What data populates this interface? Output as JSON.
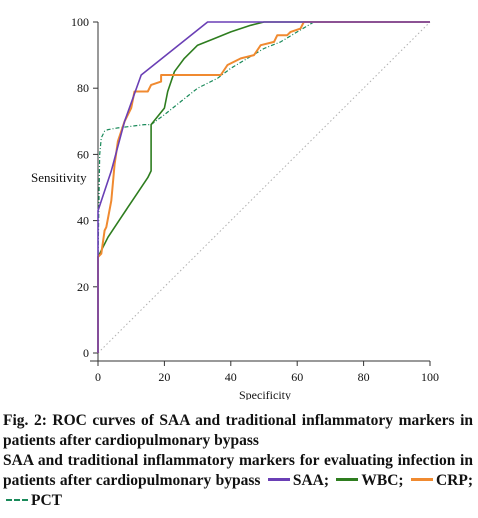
{
  "chart_data": {
    "type": "line",
    "xlabel": "Specificity",
    "ylabel": "Sensitivity",
    "xlim": [
      0,
      100
    ],
    "ylim": [
      0,
      100
    ],
    "xticks": [
      0,
      20,
      40,
      60,
      80,
      100
    ],
    "yticks": [
      0,
      20,
      40,
      60,
      80,
      100
    ],
    "grid": false,
    "reference_line": {
      "x": [
        0,
        100
      ],
      "y": [
        0,
        100
      ],
      "color": "#b0b0b0",
      "style": "dotted"
    },
    "series": [
      {
        "name": "SAA",
        "color": "#6a3fb5",
        "style": "solid",
        "x": [
          0,
          0,
          4,
          8,
          13,
          18,
          23,
          28,
          33,
          40,
          50,
          60,
          100
        ],
        "y": [
          0,
          43,
          55,
          70,
          84,
          88,
          92,
          96,
          100,
          100,
          100,
          100,
          100
        ]
      },
      {
        "name": "WBC",
        "color": "#2e7d1f",
        "style": "solid",
        "x": [
          0,
          0,
          3,
          7,
          11,
          15,
          16,
          16,
          20,
          21,
          23,
          26,
          30,
          35,
          40,
          46,
          50,
          60,
          100
        ],
        "y": [
          0,
          29,
          35,
          41,
          47,
          53,
          55,
          69,
          74,
          79,
          85,
          89,
          93,
          95,
          97,
          99,
          100,
          100,
          100
        ]
      },
      {
        "name": "CRP",
        "color": "#f08a30",
        "style": "solid",
        "x": [
          0,
          0,
          1,
          2,
          2.5,
          4,
          5,
          6,
          8,
          10,
          11,
          15,
          16,
          19,
          19,
          25,
          29,
          37,
          39,
          43,
          47,
          49,
          53,
          54,
          57,
          58,
          61,
          62,
          64,
          100
        ],
        "y": [
          0,
          29,
          30,
          37,
          38,
          46,
          57,
          64,
          70,
          74,
          79,
          79,
          81,
          82,
          84,
          84,
          84,
          84,
          87,
          89,
          90,
          93,
          94,
          96,
          96,
          97,
          98,
          100,
          100,
          100
        ]
      },
      {
        "name": "PCT",
        "color": "#1a8a5a",
        "style": "dashed",
        "x": [
          0,
          0,
          0.5,
          1,
          2,
          3,
          6,
          10,
          14,
          16,
          20,
          25,
          30,
          36,
          40,
          45,
          50,
          55,
          60,
          65,
          100
        ],
        "y": [
          0,
          28,
          60,
          65,
          67,
          67.5,
          68,
          68.5,
          69,
          69,
          72,
          76,
          80,
          83,
          86,
          89,
          92,
          94,
          97,
          100,
          100
        ]
      }
    ]
  },
  "caption": {
    "title": "Fig. 2: ROC curves of SAA and traditional inflammatory markers in patients after cardiopulmonary bypass",
    "body": "SAA and traditional inflammatory markers for evaluating infection in patients after cardiopulmonary bypass",
    "legend_items": [
      {
        "label": "SAA;",
        "color": "#6a3fb5",
        "style": "solid"
      },
      {
        "label": "WBC;",
        "color": "#2e7d1f",
        "style": "solid"
      },
      {
        "label": "CRP;",
        "color": "#f08a30",
        "style": "solid"
      },
      {
        "label": "PCT",
        "color": "#1a8a5a",
        "style": "dashed"
      }
    ]
  }
}
